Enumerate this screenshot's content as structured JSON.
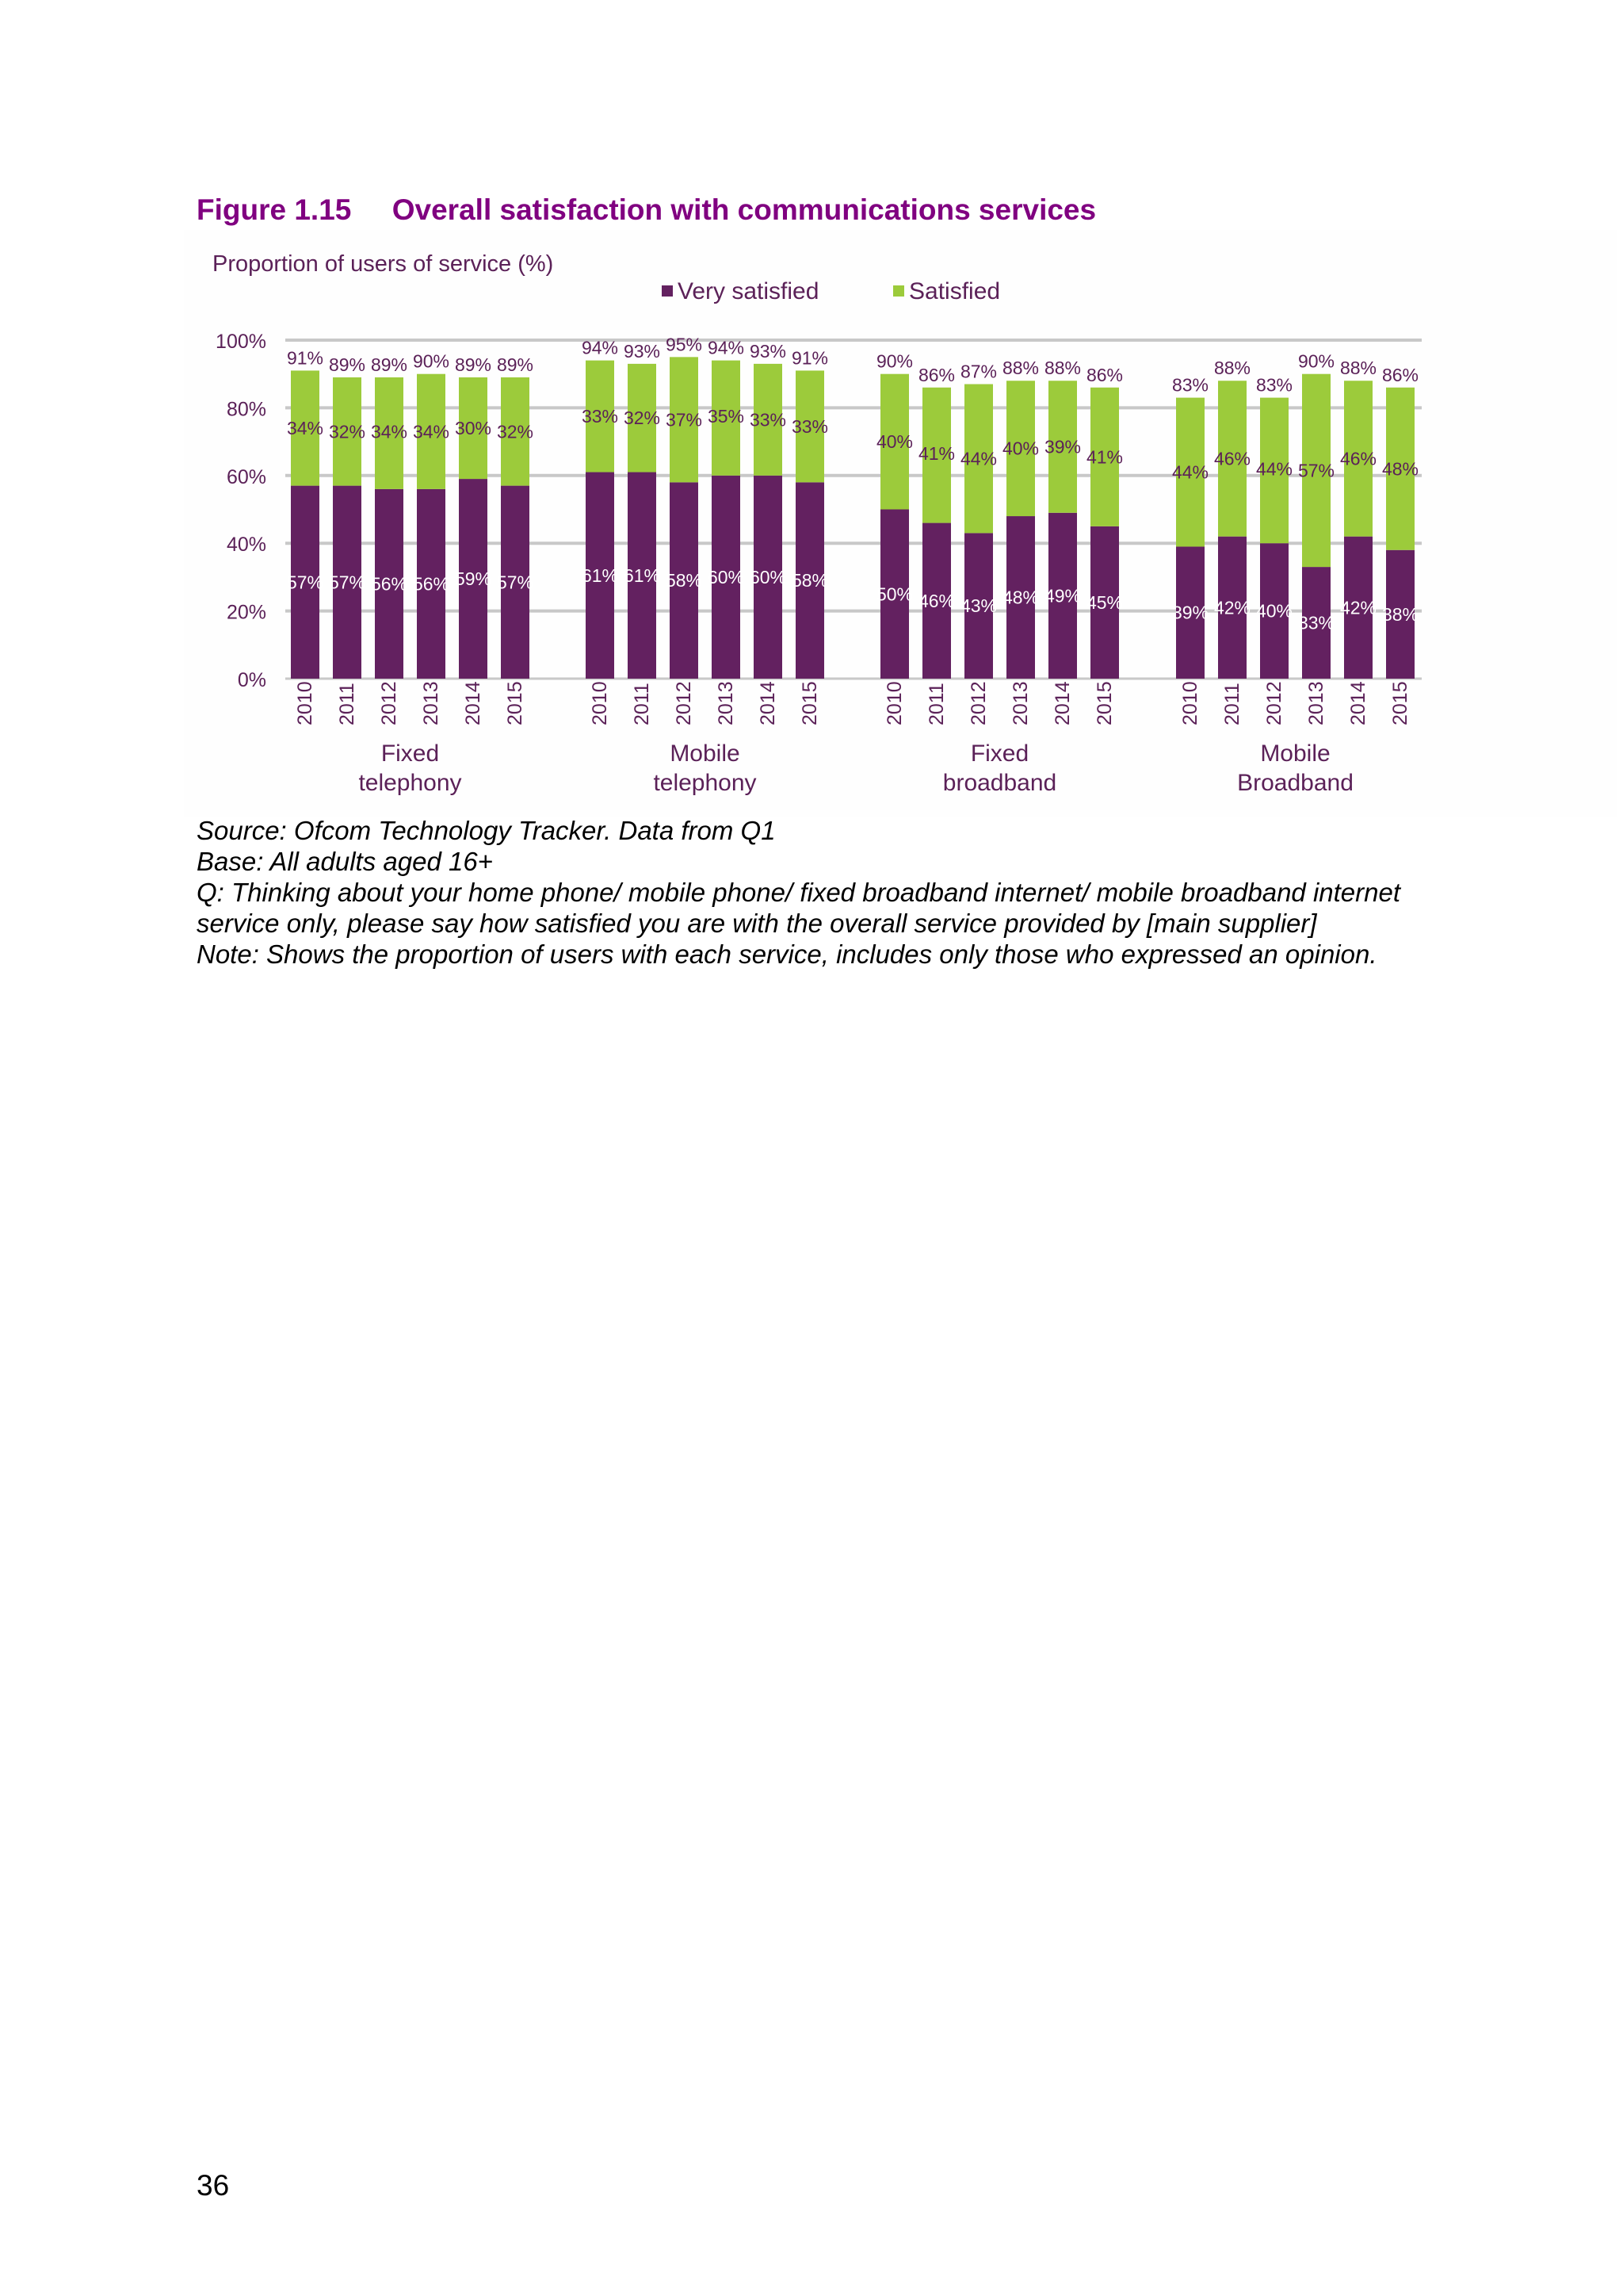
{
  "figure": {
    "title": "Figure 1.15     Overall satisfaction with communications services"
  },
  "notes": {
    "source": "Source: Ofcom Technology Tracker. Data from Q1",
    "base": "Base: All adults aged 16+",
    "question": "Q: Thinking about your home phone/ mobile phone/ fixed broadband internet/ mobile broadband internet service only, please say how satisfied you are with the overall service provided by [main supplier]",
    "note": "Note: Shows the proportion of users with each service, includes only those who expressed an opinion."
  },
  "page_number": "36",
  "colors": {
    "very_satisfied": "#632160",
    "satisfied": "#9CCB3B",
    "text": "#5B2158",
    "axis": "#C8C8C8",
    "background": "#FEFEFE"
  },
  "chart_data": {
    "type": "bar",
    "stacked": true,
    "title": "",
    "ylabel": "Proportion of users of service (%)",
    "ylim": [
      0,
      100
    ],
    "yticks": [
      "0%",
      "20%",
      "40%",
      "60%",
      "80%",
      "100%"
    ],
    "grid": true,
    "legend_position": "top",
    "series": [
      {
        "name": "Very satisfied",
        "color": "#632160"
      },
      {
        "name": "Satisfied",
        "color": "#9CCB3B"
      }
    ],
    "groups": [
      {
        "label": "Fixed\ntelephony",
        "years": [
          "2010",
          "2011",
          "2012",
          "2013",
          "2014",
          "2015"
        ],
        "very_satisfied": [
          57,
          57,
          56,
          56,
          59,
          57
        ],
        "satisfied": [
          34,
          32,
          34,
          34,
          30,
          32
        ],
        "total": [
          91,
          89,
          89,
          90,
          89,
          89
        ]
      },
      {
        "label": "Mobile\ntelephony",
        "years": [
          "2010",
          "2011",
          "2012",
          "2013",
          "2014",
          "2015"
        ],
        "very_satisfied": [
          61,
          61,
          58,
          60,
          60,
          58
        ],
        "satisfied": [
          33,
          32,
          37,
          35,
          33,
          33
        ],
        "total": [
          94,
          93,
          95,
          94,
          93,
          91
        ]
      },
      {
        "label": "Fixed\nbroadband",
        "years": [
          "2010",
          "2011",
          "2012",
          "2013",
          "2014",
          "2015"
        ],
        "very_satisfied": [
          50,
          46,
          43,
          48,
          49,
          45
        ],
        "satisfied": [
          40,
          41,
          44,
          40,
          39,
          41
        ],
        "total": [
          90,
          86,
          87,
          88,
          88,
          86
        ]
      },
      {
        "label": "Mobile\nBroadband",
        "years": [
          "2010",
          "2011",
          "2012",
          "2013",
          "2014",
          "2015"
        ],
        "very_satisfied": [
          39,
          42,
          40,
          33,
          42,
          38
        ],
        "satisfied": [
          44,
          46,
          44,
          57,
          46,
          48
        ],
        "total": [
          83,
          88,
          83,
          90,
          88,
          86
        ]
      }
    ]
  }
}
